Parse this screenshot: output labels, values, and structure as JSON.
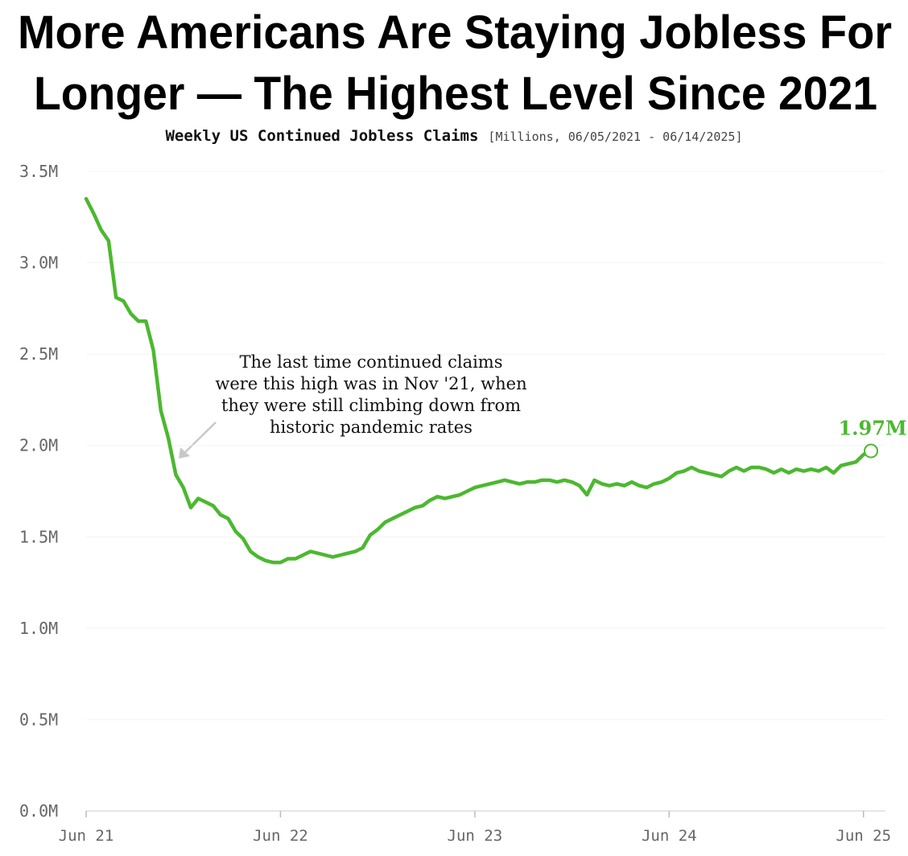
{
  "chart_data": {
    "type": "line",
    "title": [
      "More Americans Are Staying Jobless For",
      "Longer — The Highest Level Since 2021"
    ],
    "subtitle": "Weekly US Continued Jobless Claims",
    "subtitle_note": "[Millions, 06/05/2021 - 06/14/2025]",
    "annotation": [
      "The last time continued claims",
      "were this high was in Nov '21, when",
      "they were still climbing down from",
      "historic pandemic rates"
    ],
    "categories": [
      "Jun 21",
      null,
      null,
      null,
      null,
      null,
      null,
      null,
      null,
      null,
      null,
      null,
      null,
      null,
      null,
      null,
      null,
      null,
      null,
      null,
      null,
      null,
      null,
      null,
      null,
      null,
      "Jun 22",
      null,
      null,
      null,
      null,
      null,
      null,
      null,
      null,
      null,
      null,
      null,
      null,
      null,
      null,
      null,
      null,
      null,
      null,
      null,
      null,
      null,
      null,
      null,
      null,
      null,
      "Jun 23",
      null,
      null,
      null,
      null,
      null,
      null,
      null,
      null,
      null,
      null,
      null,
      null,
      null,
      null,
      null,
      null,
      null,
      null,
      null,
      null,
      null,
      null,
      null,
      null,
      null,
      "Jun 24",
      null,
      null,
      null,
      null,
      null,
      null,
      null,
      null,
      null,
      null,
      null,
      null,
      null,
      null,
      null,
      null,
      null,
      null,
      null,
      null,
      null,
      null,
      null,
      null,
      null,
      "Jun 25",
      null
    ],
    "series": [
      {
        "name": "Continued Jobless Claims",
        "color": "#4cb830",
        "values": [
          3.35,
          3.27,
          3.18,
          3.12,
          2.81,
          2.79,
          2.72,
          2.68,
          2.68,
          2.52,
          2.19,
          2.04,
          1.84,
          1.77,
          1.66,
          1.71,
          1.69,
          1.67,
          1.62,
          1.6,
          1.53,
          1.49,
          1.42,
          1.39,
          1.37,
          1.36,
          1.36,
          1.38,
          1.38,
          1.4,
          1.42,
          1.41,
          1.4,
          1.39,
          1.4,
          1.41,
          1.42,
          1.44,
          1.51,
          1.54,
          1.58,
          1.6,
          1.62,
          1.64,
          1.66,
          1.67,
          1.7,
          1.72,
          1.71,
          1.72,
          1.73,
          1.75,
          1.77,
          1.78,
          1.79,
          1.8,
          1.81,
          1.8,
          1.79,
          1.8,
          1.8,
          1.81,
          1.81,
          1.8,
          1.81,
          1.8,
          1.78,
          1.73,
          1.81,
          1.79,
          1.78,
          1.79,
          1.78,
          1.8,
          1.78,
          1.77,
          1.79,
          1.8,
          1.82,
          1.85,
          1.86,
          1.88,
          1.86,
          1.85,
          1.84,
          1.83,
          1.86,
          1.88,
          1.86,
          1.88,
          1.88,
          1.87,
          1.85,
          1.87,
          1.85,
          1.87,
          1.86,
          1.87,
          1.86,
          1.88,
          1.85,
          1.89,
          1.9,
          1.91,
          1.95,
          1.97
        ],
        "end_label": "1.97M"
      }
    ],
    "ylim": [
      0,
      3.5
    ],
    "yticks": [
      {
        "value": 0,
        "label": "0.0M"
      },
      {
        "value": 0.5,
        "label": "0.5M"
      },
      {
        "value": 1,
        "label": "1.0M"
      },
      {
        "value": 1.5,
        "label": "1.5M"
      },
      {
        "value": 2,
        "label": "2.0M"
      },
      {
        "value": 2.5,
        "label": "2.5M"
      },
      {
        "value": 3,
        "label": "3.0M"
      },
      {
        "value": 3.5,
        "label": "3.5M"
      }
    ],
    "grid": true
  }
}
